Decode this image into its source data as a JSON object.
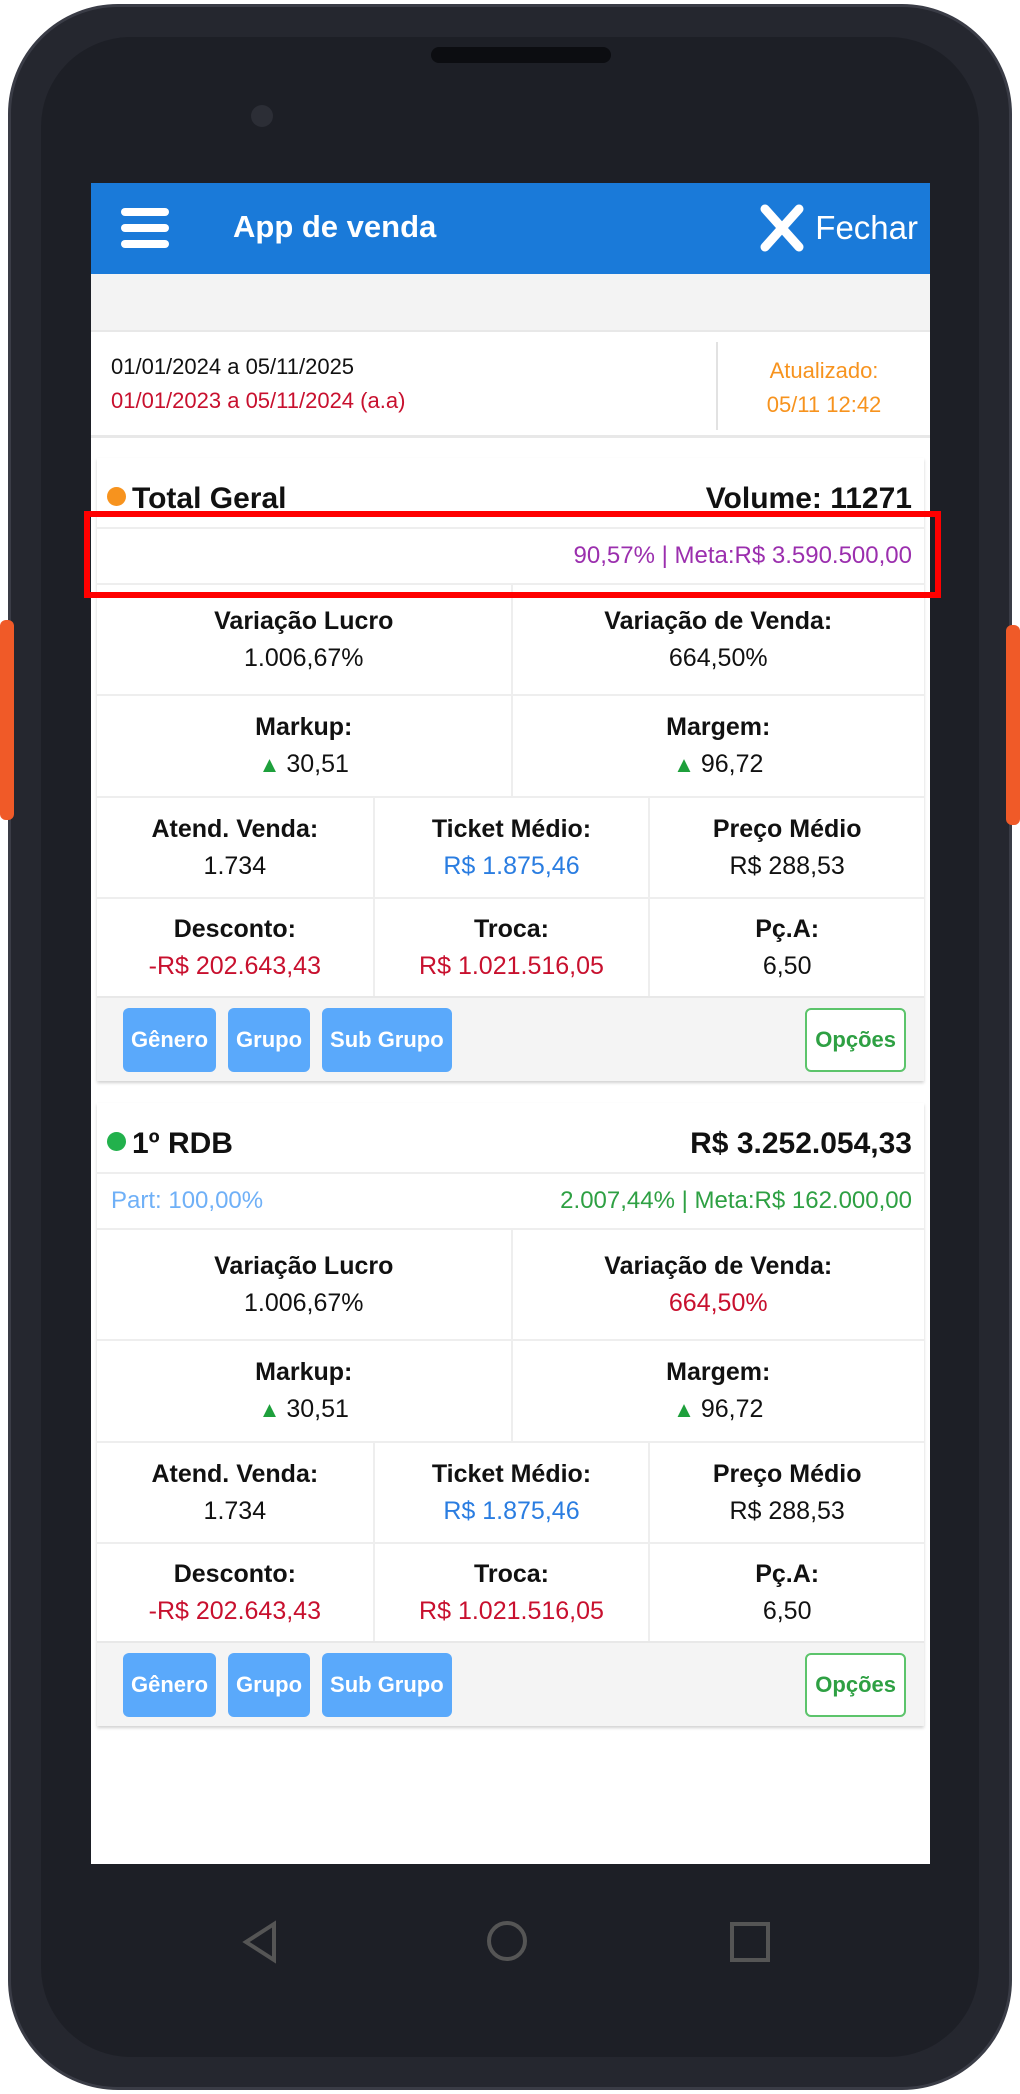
{
  "header": {
    "title": "App de venda",
    "close_label": "Fechar"
  },
  "period": {
    "current": "01/01/2024 a 05/11/2025",
    "previous": "01/01/2023 a 05/11/2024 (a.a)",
    "updated_label": "Atualizado:",
    "updated_value": "05/11 12:42"
  },
  "colors": {
    "header": "#1a7ad9",
    "dot_total": "#f7931e",
    "dot_store": "#22b14c",
    "negative": "#c8102e",
    "link": "#2a7de1",
    "meta_total": "#9b2fae",
    "meta_store": "#2ea043",
    "part": "#6fb0f7"
  },
  "cards": [
    {
      "title": "Total Geral",
      "right": "Volume: 11271",
      "part": "",
      "meta": "90,57% | Meta:R$ 3.590.500,00",
      "var_lucro_label": "Variação Lucro",
      "var_lucro": "1.006,67%",
      "var_venda_label": "Variação de Venda:",
      "var_venda": "664,50%",
      "markup_label": "Markup:",
      "markup": "30,51",
      "margem_label": "Margem:",
      "margem": "96,72",
      "atend_label": "Atend. Venda:",
      "atend": "1.734",
      "ticket_label": "Ticket Médio:",
      "ticket": "R$ 1.875,46",
      "preco_label": "Preço Médio",
      "preco": "R$ 288,53",
      "desconto_label": "Desconto:",
      "desconto": "-R$ 202.643,43",
      "troca_label": "Troca:",
      "troca": "R$ 1.021.516,05",
      "pca_label": "Pç.A:",
      "pca": "6,50",
      "buttons": [
        "Gênero",
        "Grupo",
        "Sub Grupo"
      ],
      "options": "Opções"
    },
    {
      "title": "1º RDB",
      "right": "R$ 3.252.054,33",
      "part": "Part: 100,00%",
      "meta": "2.007,44% | Meta:R$ 162.000,00",
      "var_lucro_label": "Variação Lucro",
      "var_lucro": "1.006,67%",
      "var_venda_label": "Variação de Venda:",
      "var_venda": "664,50%",
      "markup_label": "Markup:",
      "markup": "30,51",
      "margem_label": "Margem:",
      "margem": "96,72",
      "atend_label": "Atend. Venda:",
      "atend": "1.734",
      "ticket_label": "Ticket Médio:",
      "ticket": "R$ 1.875,46",
      "preco_label": "Preço Médio",
      "preco": "R$ 288,53",
      "desconto_label": "Desconto:",
      "desconto": "-R$ 202.643,43",
      "troca_label": "Troca:",
      "troca": "R$ 1.021.516,05",
      "pca_label": "Pç.A:",
      "pca": "6,50",
      "buttons": [
        "Gênero",
        "Grupo",
        "Sub Grupo"
      ],
      "options": "Opções"
    }
  ]
}
